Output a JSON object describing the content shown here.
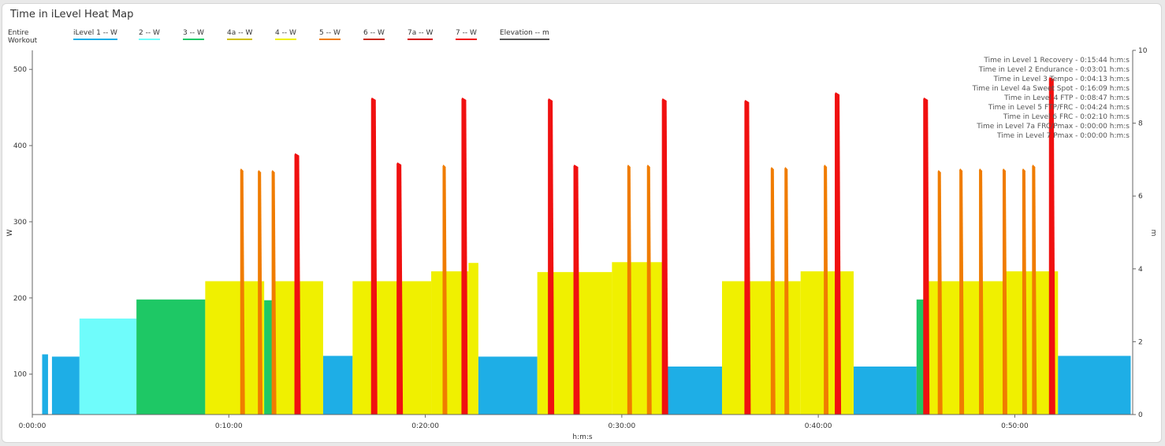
{
  "header": {
    "title": "Time in iLevel Heat Map"
  },
  "legend": {
    "scope_label": "Entire Workout",
    "items": [
      {
        "label": "iLevel 1  -- W",
        "color": "#1eaee6"
      },
      {
        "label": "2  -- W",
        "color": "#6ffcfb"
      },
      {
        "label": "3  -- W",
        "color": "#1ec865"
      },
      {
        "label": "4a  -- W",
        "color": "#d0c000"
      },
      {
        "label": "4  -- W",
        "color": "#f0f000"
      },
      {
        "label": "5  -- W",
        "color": "#f07c00"
      },
      {
        "label": "6  -- W",
        "color": "#c82814"
      },
      {
        "label": "7a  -- W",
        "color": "#d40000"
      },
      {
        "label": "7  -- W",
        "color": "#f01010"
      },
      {
        "label": "Elevation  -- m",
        "color": "#555555"
      }
    ]
  },
  "chart_data": {
    "type": "area",
    "xlabel": "h:m:s",
    "ylabel": "W",
    "y2label": "m",
    "xlim": [
      0,
      56
    ],
    "ylim": [
      47,
      525
    ],
    "y2lim": [
      0,
      10
    ],
    "x_unit": "minutes",
    "x_ticks": [
      0,
      10,
      20,
      30,
      40,
      50
    ],
    "x_tick_labels": [
      "0:00:00",
      "0:10:00",
      "0:20:00",
      "0:30:00",
      "0:40:00",
      "0:50:00"
    ],
    "y_ticks": [
      100,
      200,
      300,
      400,
      500
    ],
    "y_tick_labels": [
      "100",
      "200",
      "300",
      "400",
      "500"
    ],
    "y2_ticks": [
      0,
      2,
      4,
      6,
      8,
      10
    ],
    "y2_tick_labels": [
      "0",
      "2",
      "4",
      "6",
      "8",
      "10"
    ],
    "level_colors": {
      "1": "#1eaee6",
      "2": "#6ffcfb",
      "3": "#1ec865",
      "4a": "#d0c000",
      "4": "#f0f000",
      "5": "#f07c00",
      "6": "#c82814",
      "7a": "#d40000",
      "7": "#f01010"
    },
    "blocks": [
      {
        "start": 0.5,
        "end": 0.8,
        "watts": 126,
        "level": "1"
      },
      {
        "start": 1.0,
        "end": 2.4,
        "watts": 123,
        "level": "1"
      },
      {
        "start": 2.4,
        "end": 5.3,
        "watts": 173,
        "level": "2"
      },
      {
        "start": 5.3,
        "end": 8.8,
        "watts": 198,
        "level": "3"
      },
      {
        "start": 8.8,
        "end": 11.8,
        "watts": 222,
        "level": "4"
      },
      {
        "start": 11.8,
        "end": 12.3,
        "watts": 197,
        "level": "3"
      },
      {
        "start": 12.3,
        "end": 14.8,
        "watts": 222,
        "level": "4"
      },
      {
        "start": 14.8,
        "end": 16.3,
        "watts": 124,
        "level": "1"
      },
      {
        "start": 16.3,
        "end": 20.3,
        "watts": 222,
        "level": "4"
      },
      {
        "start": 20.3,
        "end": 22.2,
        "watts": 235,
        "level": "4"
      },
      {
        "start": 22.2,
        "end": 22.7,
        "watts": 246,
        "level": "4"
      },
      {
        "start": 22.7,
        "end": 25.7,
        "watts": 123,
        "level": "1"
      },
      {
        "start": 25.7,
        "end": 29.5,
        "watts": 234,
        "level": "4"
      },
      {
        "start": 29.5,
        "end": 32.2,
        "watts": 247,
        "level": "4"
      },
      {
        "start": 32.2,
        "end": 35.1,
        "watts": 110,
        "level": "1"
      },
      {
        "start": 35.1,
        "end": 39.1,
        "watts": 222,
        "level": "4"
      },
      {
        "start": 39.1,
        "end": 41.8,
        "watts": 235,
        "level": "4"
      },
      {
        "start": 41.8,
        "end": 45.0,
        "watts": 110,
        "level": "1"
      },
      {
        "start": 45.0,
        "end": 45.5,
        "watts": 198,
        "level": "3"
      },
      {
        "start": 45.5,
        "end": 49.5,
        "watts": 222,
        "level": "4"
      },
      {
        "start": 49.5,
        "end": 52.2,
        "watts": 235,
        "level": "4"
      },
      {
        "start": 52.2,
        "end": 55.9,
        "watts": 124,
        "level": "1"
      }
    ],
    "spikes": [
      {
        "t": 10.7,
        "watts": 370,
        "level": "5"
      },
      {
        "t": 11.6,
        "watts": 368,
        "level": "5"
      },
      {
        "t": 12.3,
        "watts": 368,
        "level": "5"
      },
      {
        "t": 13.5,
        "watts": 390,
        "level": "7"
      },
      {
        "t": 17.4,
        "watts": 463,
        "level": "7"
      },
      {
        "t": 18.7,
        "watts": 378,
        "level": "7"
      },
      {
        "t": 21.0,
        "watts": 375,
        "level": "5"
      },
      {
        "t": 22.0,
        "watts": 463,
        "level": "7"
      },
      {
        "t": 26.4,
        "watts": 462,
        "level": "7"
      },
      {
        "t": 27.7,
        "watts": 375,
        "level": "7"
      },
      {
        "t": 30.4,
        "watts": 375,
        "level": "5"
      },
      {
        "t": 31.4,
        "watts": 375,
        "level": "5"
      },
      {
        "t": 32.2,
        "watts": 462,
        "level": "7"
      },
      {
        "t": 36.4,
        "watts": 460,
        "level": "7"
      },
      {
        "t": 37.7,
        "watts": 372,
        "level": "5"
      },
      {
        "t": 38.4,
        "watts": 372,
        "level": "5"
      },
      {
        "t": 40.4,
        "watts": 375,
        "level": "5"
      },
      {
        "t": 41.0,
        "watts": 470,
        "level": "7"
      },
      {
        "t": 45.5,
        "watts": 463,
        "level": "7"
      },
      {
        "t": 46.2,
        "watts": 368,
        "level": "5"
      },
      {
        "t": 47.3,
        "watts": 370,
        "level": "5"
      },
      {
        "t": 48.3,
        "watts": 370,
        "level": "5"
      },
      {
        "t": 49.5,
        "watts": 370,
        "level": "5"
      },
      {
        "t": 50.5,
        "watts": 370,
        "level": "5"
      },
      {
        "t": 51.0,
        "watts": 375,
        "level": "5"
      },
      {
        "t": 51.9,
        "watts": 490,
        "level": "7"
      }
    ],
    "annotations": [
      "Time in Level 1 Recovery - 0:15:44 h:m:s",
      "Time in Level 2 Endurance - 0:03:01 h:m:s",
      "Time in Level 3 Tempo - 0:04:13 h:m:s",
      "Time in Level 4a Sweet Spot - 0:16:09 h:m:s",
      "Time in Level 4 FTP - 0:08:47 h:m:s",
      "Time in Level 5 FTP/FRC - 0:04:24 h:m:s",
      "Time in Level 6 FRC - 0:02:10 h:m:s",
      "Time in Level 7a FRC/Pmax - 0:00:00 h:m:s",
      "Time in Level 7 Pmax - 0:00:00 h:m:s"
    ]
  }
}
